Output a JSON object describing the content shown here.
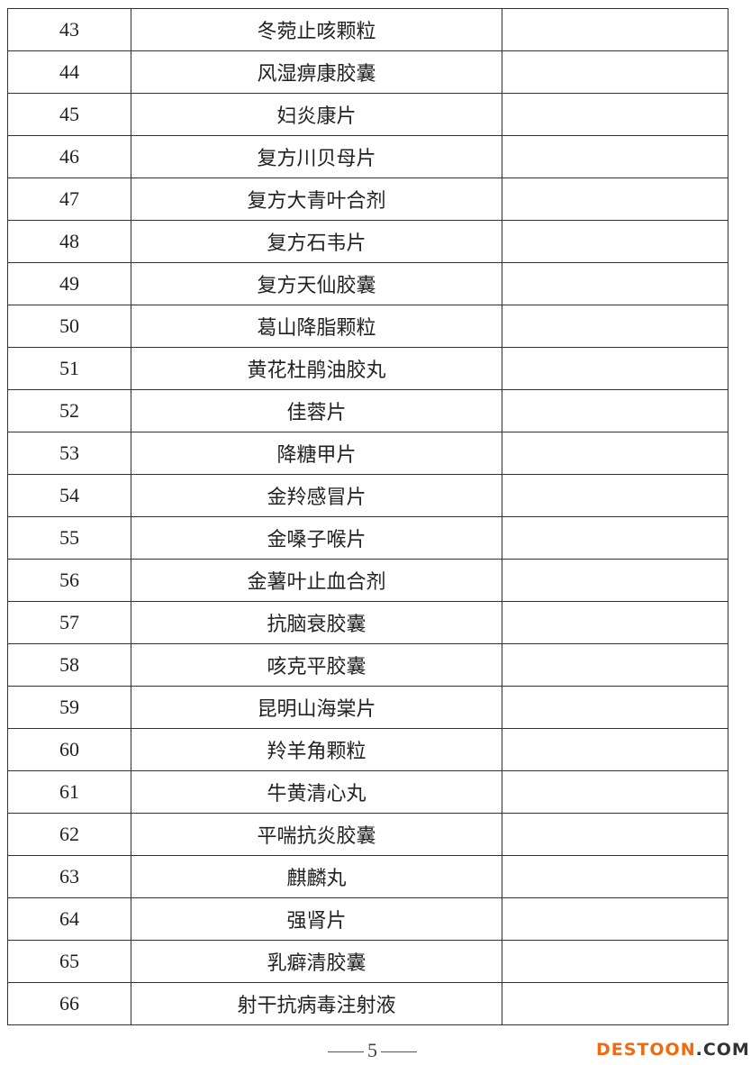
{
  "rows": [
    {
      "no": "43",
      "name": "冬菀止咳颗粒",
      "remark": ""
    },
    {
      "no": "44",
      "name": "风湿痹康胶囊",
      "remark": ""
    },
    {
      "no": "45",
      "name": "妇炎康片",
      "remark": ""
    },
    {
      "no": "46",
      "name": "复方川贝母片",
      "remark": ""
    },
    {
      "no": "47",
      "name": "复方大青叶合剂",
      "remark": ""
    },
    {
      "no": "48",
      "name": "复方石韦片",
      "remark": ""
    },
    {
      "no": "49",
      "name": "复方天仙胶囊",
      "remark": ""
    },
    {
      "no": "50",
      "name": "葛山降脂颗粒",
      "remark": ""
    },
    {
      "no": "51",
      "name": "黄花杜鹃油胶丸",
      "remark": ""
    },
    {
      "no": "52",
      "name": "佳蓉片",
      "remark": ""
    },
    {
      "no": "53",
      "name": "降糖甲片",
      "remark": ""
    },
    {
      "no": "54",
      "name": "金羚感冒片",
      "remark": ""
    },
    {
      "no": "55",
      "name": "金嗓子喉片",
      "remark": ""
    },
    {
      "no": "56",
      "name": "金薯叶止血合剂",
      "remark": ""
    },
    {
      "no": "57",
      "name": "抗脑衰胶囊",
      "remark": ""
    },
    {
      "no": "58",
      "name": "咳克平胶囊",
      "remark": ""
    },
    {
      "no": "59",
      "name": "昆明山海棠片",
      "remark": ""
    },
    {
      "no": "60",
      "name": "羚羊角颗粒",
      "remark": ""
    },
    {
      "no": "61",
      "name": "牛黄清心丸",
      "remark": ""
    },
    {
      "no": "62",
      "name": "平喘抗炎胶囊",
      "remark": ""
    },
    {
      "no": "63",
      "name": "麒麟丸",
      "remark": ""
    },
    {
      "no": "64",
      "name": "强肾片",
      "remark": ""
    },
    {
      "no": "65",
      "name": "乳癖清胶囊",
      "remark": ""
    },
    {
      "no": "66",
      "name": "射干抗病毒注射液",
      "remark": ""
    }
  ],
  "page_number": "5",
  "watermark": {
    "part1": "DESTOON",
    "part2": ".COM"
  }
}
